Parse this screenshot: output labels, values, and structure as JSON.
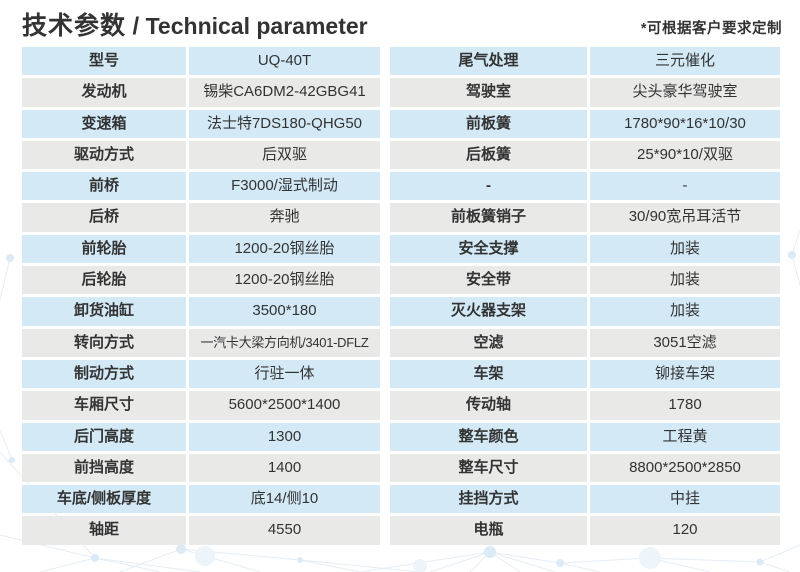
{
  "header": {
    "title_zh": "技术参数",
    "title_sep": "/",
    "title_en": "Technical parameter",
    "note": "*可根据客户要求定制"
  },
  "colors": {
    "row_blue": "#d3e9f6",
    "row_gray": "#e9e9e8",
    "text": "#333333"
  },
  "table_left": {
    "rows": [
      {
        "label": "型号",
        "value": "UQ-40T"
      },
      {
        "label": "发动机",
        "value": "锡柴CA6DM2-42GBG41"
      },
      {
        "label": "变速箱",
        "value": "法士特7DS180-QHG50"
      },
      {
        "label": "驱动方式",
        "value": "后双驱"
      },
      {
        "label": "前桥",
        "value": "F3000/湿式制动"
      },
      {
        "label": "后桥",
        "value": "奔驰"
      },
      {
        "label": "前轮胎",
        "value": "1200-20钢丝胎"
      },
      {
        "label": "后轮胎",
        "value": "1200-20钢丝胎"
      },
      {
        "label": "卸货油缸",
        "value": "3500*180"
      },
      {
        "label": "转向方式",
        "value": "一汽卡大梁方向机/3401-DFLZ"
      },
      {
        "label": "制动方式",
        "value": "行驻一体"
      },
      {
        "label": "车厢尺寸",
        "value": "5600*2500*1400"
      },
      {
        "label": "后门高度",
        "value": "1300"
      },
      {
        "label": "前挡高度",
        "value": "1400"
      },
      {
        "label": "车底/侧板厚度",
        "value": "底14/侧10"
      },
      {
        "label": "轴距",
        "value": "4550"
      }
    ]
  },
  "table_right": {
    "rows": [
      {
        "label": "尾气处理",
        "value": "三元催化"
      },
      {
        "label": "驾驶室",
        "value": "尖头豪华驾驶室"
      },
      {
        "label": "前板簧",
        "value": "1780*90*16*10/30"
      },
      {
        "label": "后板簧",
        "value": "25*90*10/双驱"
      },
      {
        "label": "-",
        "value": "-"
      },
      {
        "label": "前板簧销子",
        "value": "30/90宽吊耳活节"
      },
      {
        "label": "安全支撑",
        "value": "加装"
      },
      {
        "label": "安全带",
        "value": "加装"
      },
      {
        "label": "灭火器支架",
        "value": "加装"
      },
      {
        "label": "空滤",
        "value": "3051空滤"
      },
      {
        "label": "车架",
        "value": "铆接车架"
      },
      {
        "label": "传动轴",
        "value": "1780"
      },
      {
        "label": "整车颜色",
        "value": "工程黄"
      },
      {
        "label": "整车尺寸",
        "value": "8800*2500*2850"
      },
      {
        "label": "挂挡方式",
        "value": "中挂"
      },
      {
        "label": "电瓶",
        "value": "120"
      }
    ]
  }
}
